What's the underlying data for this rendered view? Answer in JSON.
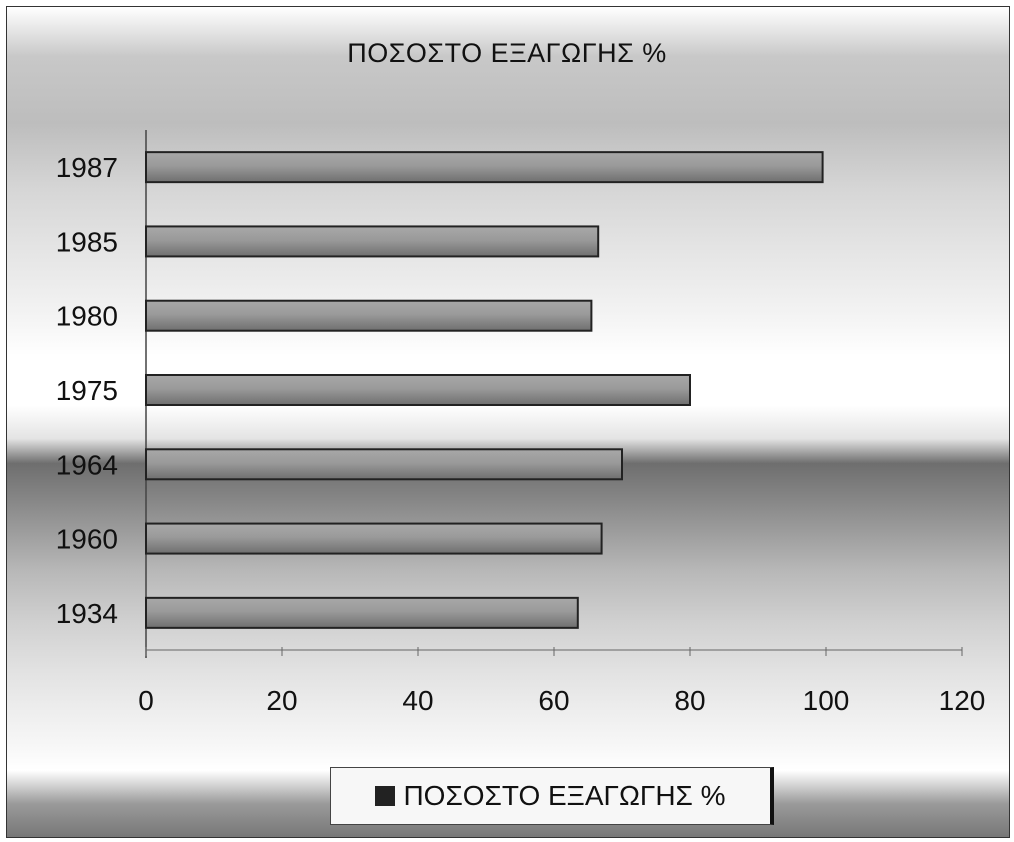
{
  "chart_data": {
    "type": "bar",
    "orientation": "horizontal",
    "title": "ΠΟΣΟΣΤΟ ΕΞΑΓΩΓΗΣ %",
    "categories": [
      "1934",
      "1960",
      "1964",
      "1975",
      "1980",
      "1985",
      "1987"
    ],
    "series": [
      {
        "name": "ΠΟΣΟΣΤΟ ΕΞΑΓΩΓΗΣ %",
        "values": [
          63.5,
          67,
          70,
          80,
          65.5,
          66.5,
          99.5
        ],
        "color": "#8c8c8c"
      }
    ],
    "xlim": [
      0,
      120
    ],
    "xticks": [
      0,
      20,
      40,
      60,
      80,
      100,
      120
    ],
    "grid": false,
    "legend_position": "bottom"
  }
}
